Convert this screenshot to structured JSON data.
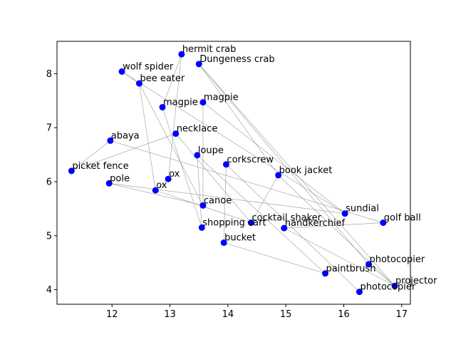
{
  "chart_data": {
    "type": "scatter",
    "title": "",
    "xlabel": "",
    "ylabel": "",
    "xlim": [
      11.05,
      17.15
    ],
    "ylim": [
      3.73,
      8.6
    ],
    "xticks": [
      12,
      13,
      14,
      15,
      16,
      17
    ],
    "yticks": [
      4,
      5,
      6,
      7,
      8
    ],
    "grid": false,
    "point_color": "#0000ff",
    "edge_color": "#999999",
    "points": [
      {
        "label": "hermit crab",
        "x": 13.2,
        "y": 8.36
      },
      {
        "label": "Dungeness crab",
        "x": 13.5,
        "y": 8.18
      },
      {
        "label": "wolf spider",
        "x": 12.17,
        "y": 8.04
      },
      {
        "label": "bee eater",
        "x": 12.47,
        "y": 7.82
      },
      {
        "label": "magpie",
        "x": 13.57,
        "y": 7.47
      },
      {
        "label": "magpie",
        "x": 12.87,
        "y": 7.38
      },
      {
        "label": "necklace",
        "x": 13.1,
        "y": 6.89
      },
      {
        "label": "abaya",
        "x": 11.97,
        "y": 6.76
      },
      {
        "label": "loupe",
        "x": 13.47,
        "y": 6.49
      },
      {
        "label": "corkscrew",
        "x": 13.97,
        "y": 6.32
      },
      {
        "label": "picket fence",
        "x": 11.3,
        "y": 6.2
      },
      {
        "label": "book jacket",
        "x": 14.87,
        "y": 6.12
      },
      {
        "label": "ox",
        "x": 12.97,
        "y": 6.05
      },
      {
        "label": "pole",
        "x": 11.95,
        "y": 5.97
      },
      {
        "label": "ox",
        "x": 12.75,
        "y": 5.84
      },
      {
        "label": "canoe",
        "x": 13.57,
        "y": 5.56
      },
      {
        "label": "sundial",
        "x": 16.02,
        "y": 5.41
      },
      {
        "label": "golf ball",
        "x": 16.68,
        "y": 5.24
      },
      {
        "label": "cocktail shaker",
        "x": 14.4,
        "y": 5.24
      },
      {
        "label": "shopping cart",
        "x": 13.55,
        "y": 5.15
      },
      {
        "label": "handkerchief",
        "x": 14.97,
        "y": 5.14
      },
      {
        "label": "bucket",
        "x": 13.93,
        "y": 4.87
      },
      {
        "label": "photocopier",
        "x": 16.43,
        "y": 4.47
      },
      {
        "label": "paintbrush",
        "x": 15.68,
        "y": 4.3
      },
      {
        "label": "projector",
        "x": 16.88,
        "y": 4.07
      },
      {
        "label": "photocopier",
        "x": 16.27,
        "y": 3.96
      }
    ],
    "edges": [
      [
        0,
        5
      ],
      [
        0,
        12
      ],
      [
        1,
        22
      ],
      [
        1,
        24
      ],
      [
        2,
        3
      ],
      [
        2,
        16
      ],
      [
        3,
        15
      ],
      [
        3,
        14
      ],
      [
        4,
        15
      ],
      [
        4,
        16
      ],
      [
        5,
        19
      ],
      [
        6,
        10
      ],
      [
        6,
        18
      ],
      [
        7,
        10
      ],
      [
        7,
        17
      ],
      [
        8,
        23
      ],
      [
        8,
        19
      ],
      [
        9,
        21
      ],
      [
        9,
        25
      ],
      [
        11,
        18
      ],
      [
        11,
        24
      ],
      [
        12,
        14
      ],
      [
        13,
        16
      ],
      [
        13,
        15
      ],
      [
        17,
        20
      ],
      [
        21,
        23
      ],
      [
        22,
        24
      ],
      [
        20,
        24
      ],
      [
        14,
        18
      ],
      [
        1,
        11
      ]
    ]
  }
}
